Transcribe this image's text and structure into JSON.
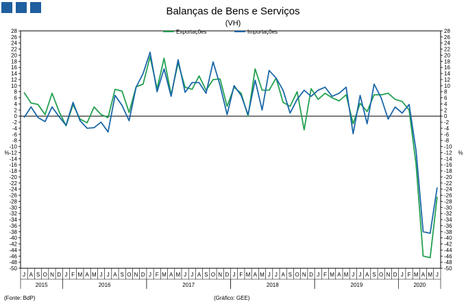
{
  "header": {
    "title": "Balanças de Bens e Serviços",
    "subtitle": "(VH)"
  },
  "footer": {
    "source": "(Fonte: BdP)",
    "chart_credit": "(Gráfico: GEE)"
  },
  "chart_data": {
    "type": "line",
    "title": "Balanças de Bens e Serviços",
    "subtitle": "(VH)",
    "ylabel": "%",
    "ylim": [
      -50,
      28
    ],
    "ytick_step": 2,
    "grid": false,
    "legend_position": "top-center",
    "month_labels": [
      "J",
      "A",
      "S",
      "O",
      "N",
      "D",
      "J",
      "F",
      "M",
      "A",
      "M",
      "J",
      "J",
      "A",
      "S",
      "O",
      "N",
      "D",
      "J",
      "F",
      "M",
      "A",
      "M",
      "J",
      "J",
      "A",
      "S",
      "O",
      "N",
      "D",
      "J",
      "F",
      "M",
      "A",
      "M",
      "J",
      "J",
      "A",
      "S",
      "O",
      "N",
      "D",
      "J",
      "F",
      "M",
      "A",
      "M",
      "J",
      "J",
      "A",
      "S",
      "O",
      "N",
      "D",
      "J",
      "F",
      "M",
      "A",
      "M",
      "J"
    ],
    "years": [
      {
        "label": "2015",
        "start": 0,
        "count": 6
      },
      {
        "label": "2016",
        "start": 6,
        "count": 12
      },
      {
        "label": "2017",
        "start": 18,
        "count": 12
      },
      {
        "label": "2018",
        "start": 30,
        "count": 12
      },
      {
        "label": "2019",
        "start": 42,
        "count": 12
      },
      {
        "label": "2020",
        "start": 54,
        "count": 6
      }
    ],
    "series": [
      {
        "name": "Exportações",
        "color": "#22a050",
        "values": [
          7.8,
          4.3,
          3.8,
          0.5,
          7.5,
          1.5,
          -3.2,
          3.8,
          -1.0,
          -2.2,
          3.0,
          0.5,
          -0.5,
          8.8,
          8.2,
          1.2,
          9.6,
          10.5,
          19.5,
          9.0,
          19.0,
          7.0,
          17.5,
          9.5,
          8.8,
          13.2,
          8.5,
          12.0,
          12.2,
          3.2,
          9.5,
          7.5,
          0.0,
          15.5,
          8.5,
          8.5,
          12.5,
          4.5,
          3.2,
          8.0,
          -4.5,
          9.0,
          5.5,
          7.5,
          6.0,
          5.0,
          7.0,
          -2.5,
          4.2,
          1.5,
          7.0,
          7.0,
          7.5,
          5.5,
          4.8,
          2.0,
          -16.0,
          -46.0,
          -46.5,
          -26.5
        ]
      },
      {
        "name": "Importações",
        "color": "#1a66a8",
        "values": [
          -0.5,
          3.0,
          -0.5,
          -1.8,
          3.0,
          -0.2,
          -3.0,
          4.5,
          -1.5,
          -4.0,
          -3.8,
          -2.0,
          -5.2,
          6.8,
          3.5,
          -1.5,
          9.5,
          14.0,
          21.0,
          8.0,
          15.5,
          6.5,
          18.5,
          7.8,
          11.0,
          11.0,
          7.5,
          17.8,
          10.0,
          0.5,
          10.0,
          6.8,
          0.5,
          11.8,
          2.0,
          15.0,
          12.5,
          8.5,
          1.0,
          5.5,
          8.5,
          6.5,
          8.5,
          9.5,
          6.5,
          7.5,
          9.5,
          -5.8,
          6.8,
          -2.5,
          10.5,
          6.0,
          -1.0,
          3.0,
          1.0,
          3.8,
          -11.5,
          -38.0,
          -38.5,
          -23.5
        ]
      }
    ]
  }
}
